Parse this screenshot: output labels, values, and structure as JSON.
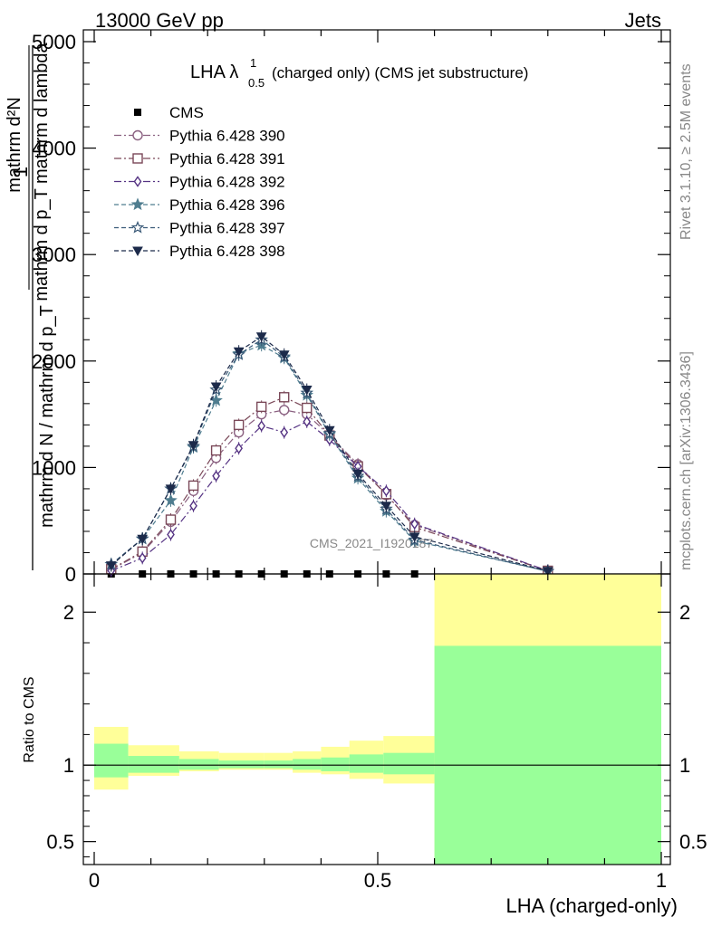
{
  "header": {
    "left": "13000 GeV pp",
    "right": "Jets"
  },
  "side_labels": {
    "rivet": "Rivet 3.1.10, ≥ 2.5M events",
    "mcplots": "mcplots.cern.ch [arXiv:1306.3436]"
  },
  "watermark": "CMS_2021_I1920187",
  "chart_data": [
    {
      "type": "line",
      "title_main": "LHA λ",
      "title_sup": "1",
      "title_sub": "0.5",
      "title_rest": "(charged only) (CMS jet substructure)",
      "xlabel": "",
      "ylabel_numerator": "1",
      "ylabel_denominator": "mathrm d N / mathrm d p_T",
      "ylabel_rhs_line1": "mathrm d²N",
      "ylabel_rhs_line2": "mathrm d p_T mathrm d lambda",
      "xlim": [
        0,
        1
      ],
      "ylim": [
        0,
        5000
      ],
      "yticks": [
        0,
        1000,
        2000,
        3000,
        4000,
        5000
      ],
      "ytick_labels": [
        "0",
        "1000",
        "2000",
        "3000",
        "4000",
        "5000"
      ],
      "legend_position": "top-left",
      "x": [
        0.03,
        0.085,
        0.135,
        0.175,
        0.215,
        0.255,
        0.295,
        0.335,
        0.375,
        0.415,
        0.465,
        0.515,
        0.565,
        0.8
      ],
      "series": [
        {
          "name": "CMS",
          "color": "#000000",
          "marker": "square",
          "x": [
            0.03,
            0.085,
            0.135,
            0.175,
            0.215,
            0.255,
            0.295,
            0.335,
            0.375,
            0.415,
            0.465,
            0.515,
            0.565
          ],
          "values": [
            0,
            0,
            0,
            0,
            0,
            0,
            0,
            0,
            0,
            0,
            0,
            0,
            0
          ]
        },
        {
          "name": "Pythia 6.428 390",
          "color": "#8a6080",
          "marker": "circle-open",
          "dash": "dashdot",
          "values": [
            40,
            200,
            490,
            780,
            1090,
            1330,
            1500,
            1540,
            1500,
            1300,
            1030,
            740,
            460,
            30
          ]
        },
        {
          "name": "Pythia 6.428 391",
          "color": "#7a4858",
          "marker": "square-open",
          "dash": "dashdot",
          "values": [
            45,
            210,
            510,
            830,
            1160,
            1400,
            1570,
            1660,
            1560,
            1300,
            1010,
            750,
            440,
            30
          ]
        },
        {
          "name": "Pythia 6.428 392",
          "color": "#553383",
          "marker": "diamond-open",
          "dash": "dashdot",
          "values": [
            30,
            150,
            370,
            640,
            920,
            1180,
            1390,
            1330,
            1430,
            1260,
            1010,
            780,
            470,
            30
          ]
        },
        {
          "name": "Pythia 6.428 396",
          "color": "#4f7d8f",
          "marker": "star-filled",
          "dash": "dashed",
          "values": [
            90,
            330,
            690,
            1190,
            1630,
            2070,
            2150,
            2030,
            1680,
            1310,
            900,
            590,
            310,
            25
          ]
        },
        {
          "name": "Pythia 6.428 397",
          "color": "#3a5a78",
          "marker": "star-open",
          "dash": "dashed",
          "values": [
            90,
            330,
            800,
            1200,
            1730,
            2060,
            2200,
            2040,
            1700,
            1320,
            920,
            610,
            320,
            25
          ]
        },
        {
          "name": "Pythia 6.428 398",
          "color": "#1c2a4a",
          "marker": "tri-down-filled",
          "dash": "dashed",
          "values": [
            80,
            330,
            800,
            1210,
            1760,
            2090,
            2230,
            2060,
            1730,
            1350,
            940,
            640,
            350,
            28
          ]
        }
      ]
    },
    {
      "type": "area",
      "ylabel": "Ratio to CMS",
      "xlabel": "LHA (charged-only)",
      "xlim": [
        0,
        1
      ],
      "ylim": [
        0.35,
        2.25
      ],
      "xticks": [
        0,
        0.5,
        1
      ],
      "xtick_labels": [
        "0",
        "0.5",
        "1"
      ],
      "yticks": [
        0.5,
        1,
        2
      ],
      "ytick_labels": [
        "0.5",
        "1",
        "2"
      ],
      "reference_line": 1,
      "bands": {
        "bin_edges": [
          0,
          0.06,
          0.15,
          0.22,
          0.3,
          0.35,
          0.4,
          0.45,
          0.51,
          0.6,
          1.0
        ],
        "total_color": "#ffff99",
        "stat_color": "#99ff99",
        "total_low": [
          0.84,
          0.93,
          0.96,
          0.97,
          0.97,
          0.95,
          0.94,
          0.91,
          0.88,
          0.35
        ],
        "total_high": [
          1.25,
          1.13,
          1.09,
          1.08,
          1.08,
          1.09,
          1.12,
          1.16,
          1.19,
          2.27
        ],
        "stat_low": [
          0.92,
          0.95,
          0.97,
          0.98,
          0.98,
          0.97,
          0.96,
          0.95,
          0.94,
          0.35
        ],
        "stat_high": [
          1.14,
          1.06,
          1.04,
          1.03,
          1.03,
          1.04,
          1.05,
          1.07,
          1.08,
          1.78
        ]
      }
    }
  ]
}
